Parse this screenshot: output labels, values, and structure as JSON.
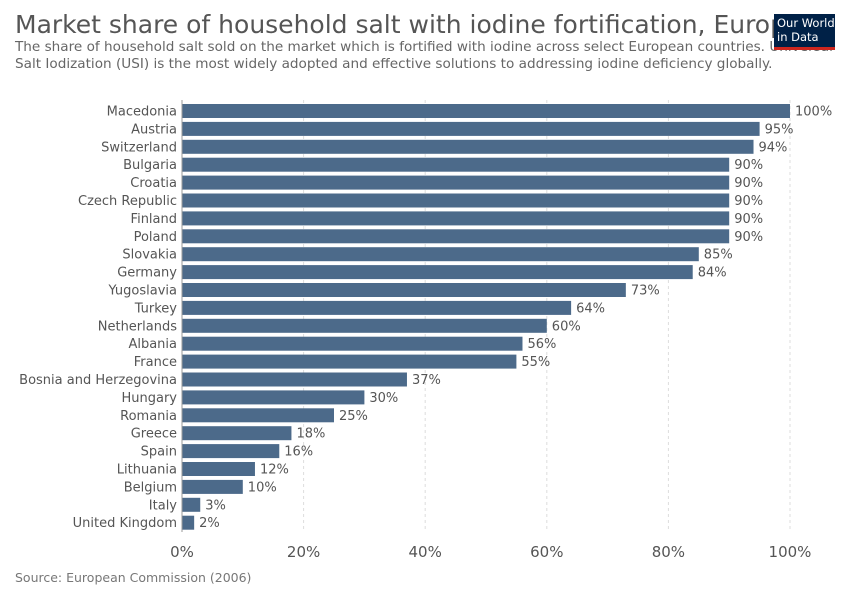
{
  "header": {
    "title": "Market share of household salt with iodine fortification, Europe",
    "subtitle": "The share of household salt sold on the market which is fortified with iodine across select European countries. Universal Salt Iodization (USI) is the most widely adopted and effective solutions to addressing iodine deficiency globally.",
    "logo_line1": "Our World",
    "logo_line2": "in Data"
  },
  "footer": {
    "source": "Source: European Commission (2006)"
  },
  "colors": {
    "bar": "#4c6a8a",
    "grid": "#dddddd",
    "logo_bg": "#002147",
    "logo_accent": "#ce261e"
  },
  "chart_data": {
    "type": "bar",
    "orientation": "horizontal",
    "categories": [
      "Macedonia",
      "Austria",
      "Switzerland",
      "Bulgaria",
      "Croatia",
      "Czech Republic",
      "Finland",
      "Poland",
      "Slovakia",
      "Germany",
      "Yugoslavia",
      "Turkey",
      "Netherlands",
      "Albania",
      "France",
      "Bosnia and Herzegovina",
      "Hungary",
      "Romania",
      "Greece",
      "Spain",
      "Lithuania",
      "Belgium",
      "Italy",
      "United Kingdom"
    ],
    "values": [
      100,
      95,
      94,
      90,
      90,
      90,
      90,
      90,
      85,
      84,
      73,
      64,
      60,
      56,
      55,
      37,
      30,
      25,
      18,
      16,
      12,
      10,
      3,
      2
    ],
    "value_labels": [
      "100%",
      "95%",
      "94%",
      "90%",
      "90%",
      "90%",
      "90%",
      "90%",
      "85%",
      "84%",
      "73%",
      "64%",
      "60%",
      "56%",
      "55%",
      "37%",
      "30%",
      "25%",
      "18%",
      "16%",
      "12%",
      "10%",
      "3%",
      "2%"
    ],
    "x_ticks": [
      0,
      20,
      40,
      60,
      80,
      100
    ],
    "x_tick_labels": [
      "0%",
      "20%",
      "40%",
      "60%",
      "80%",
      "100%"
    ],
    "xlim": [
      0,
      100
    ],
    "grid": "vertical-dashed",
    "legend": "none"
  }
}
